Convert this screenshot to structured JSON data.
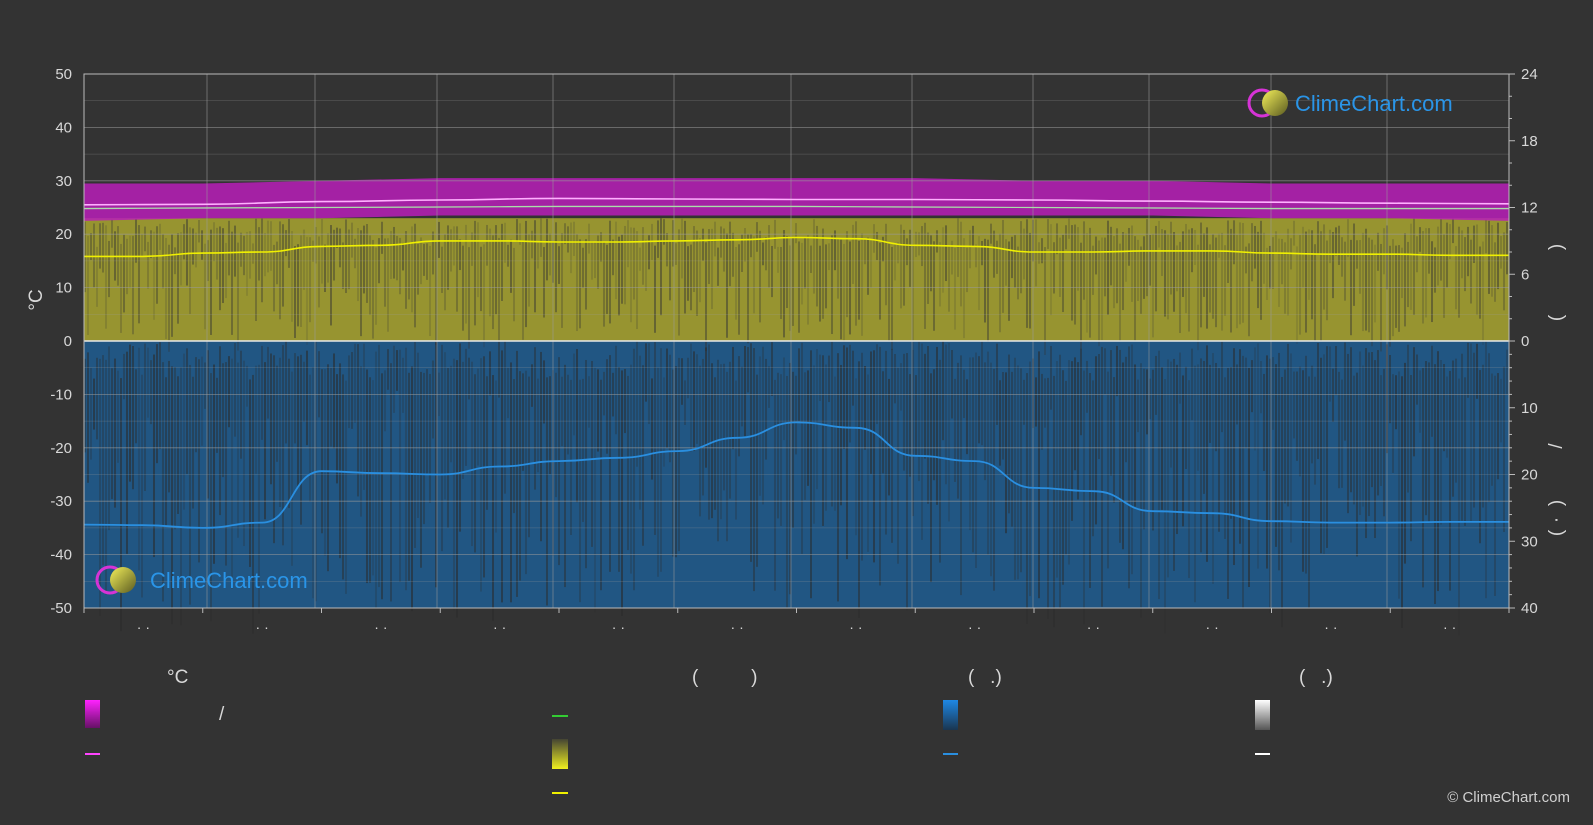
{
  "colors": {
    "background": "#333333",
    "sunshine_fill": "#c7c42e",
    "sunshine_line": "#f0f000",
    "temp_band": "#cc22cc",
    "temp_line": "#ff66ff",
    "temp_min_line": "#dddddd",
    "green_line": "#33cc33",
    "precip_fill": "#1f6fb0",
    "precip_line": "#2a8fe0",
    "daylight_line": "#ffffff"
  },
  "brand": {
    "name": "ClimeChart.com",
    "copyright": "© ClimeChart.com"
  },
  "chart_data": {
    "type": "line",
    "title": "",
    "y_left": {
      "label": "°C",
      "ylim": [
        -50,
        50
      ],
      "ticks": [
        "50",
        "40",
        "30",
        "20",
        "10",
        "0",
        "-10",
        "-20",
        "-30",
        "-40",
        "-50"
      ]
    },
    "y_right_top": {
      "ylim": [
        0,
        24
      ],
      "ticks": [
        "24",
        "18",
        "12",
        "6",
        "0"
      ]
    },
    "y_right_bottom": {
      "ylim": [
        0,
        40
      ],
      "ticks": [
        "10",
        "20",
        "30",
        "40"
      ]
    },
    "y_right_labels": [
      ")",
      "(",
      "/",
      ")",
      "(",
      "·"
    ],
    "month_labels": [
      "· ·",
      "· ·",
      "· ·",
      "· ·",
      "· ·",
      "· ·",
      "· ·",
      "· ·",
      "· ·",
      "· ·",
      "· ·",
      "· ·"
    ],
    "grid": true,
    "series": [
      {
        "key": "temp_band_max",
        "x": [
          0,
          1,
          2,
          3,
          4,
          5,
          6,
          7,
          8,
          9,
          10,
          11,
          12
        ],
        "values": [
          29.5,
          29.5,
          30,
          30.5,
          30.5,
          30.5,
          30.5,
          30.5,
          30,
          30,
          29.5,
          29.5,
          29.5
        ]
      },
      {
        "key": "temp_band_min",
        "x": [
          0,
          1,
          2,
          3,
          4,
          5,
          6,
          7,
          8,
          9,
          10,
          11,
          12
        ],
        "values": [
          22.5,
          23,
          23,
          23.5,
          23.5,
          23.5,
          23.5,
          23.5,
          23.5,
          23.5,
          23,
          23,
          22.5
        ]
      },
      {
        "key": "temp_mean_max",
        "x": [
          0,
          1,
          2,
          3,
          4,
          5,
          6,
          7,
          8,
          9,
          10,
          11,
          12
        ],
        "values": [
          25.5,
          25.6,
          26.1,
          26.4,
          26.7,
          26.6,
          26.5,
          26.5,
          26.4,
          26.2,
          26.0,
          25.8,
          25.7
        ]
      },
      {
        "key": "temp_mean_min",
        "x": [
          0,
          1,
          2,
          3,
          4,
          5,
          6,
          7,
          8,
          9,
          10,
          11,
          12
        ],
        "values": [
          24.8,
          24.9,
          25.0,
          25.1,
          25.2,
          25.2,
          25.2,
          25.1,
          25.0,
          24.9,
          24.8,
          24.8,
          24.8
        ]
      },
      {
        "key": "sunshine_hours",
        "x": [
          0,
          0.5,
          1,
          1.5,
          2,
          2.5,
          3,
          3.5,
          4,
          4.5,
          5,
          5.5,
          6,
          6.5,
          7,
          7.5,
          8,
          8.5,
          9,
          9.5,
          10,
          10.5,
          11,
          11.5,
          12
        ],
        "values": [
          7.6,
          7.6,
          7.9,
          8.0,
          8.5,
          8.6,
          9.0,
          9.0,
          8.9,
          8.9,
          9.0,
          9.1,
          9.3,
          9.2,
          8.6,
          8.5,
          8.0,
          8.0,
          8.1,
          8.1,
          7.9,
          7.8,
          7.8,
          7.7,
          7.7
        ]
      },
      {
        "key": "precipitation_mm",
        "x": [
          0,
          0.5,
          1,
          1.5,
          2,
          2.5,
          3,
          3.5,
          4,
          4.5,
          5,
          5.5,
          6,
          6.5,
          7,
          7.5,
          8,
          8.5,
          9,
          9.5,
          10,
          10.5,
          11,
          11.5,
          12
        ],
        "values": [
          27.5,
          27.6,
          28.0,
          27.2,
          19.5,
          19.8,
          20.0,
          18.8,
          18.0,
          17.5,
          16.5,
          14.5,
          12.2,
          13.0,
          17.2,
          18.0,
          22.0,
          22.5,
          25.5,
          25.8,
          27.0,
          27.2,
          27.2,
          27.1,
          27.1
        ]
      }
    ]
  },
  "legend": {
    "col1_header": "°C",
    "col1_slash": "/",
    "col2_header": "(          )",
    "col3_header": "(   .)",
    "col4_header": "(   .)"
  }
}
